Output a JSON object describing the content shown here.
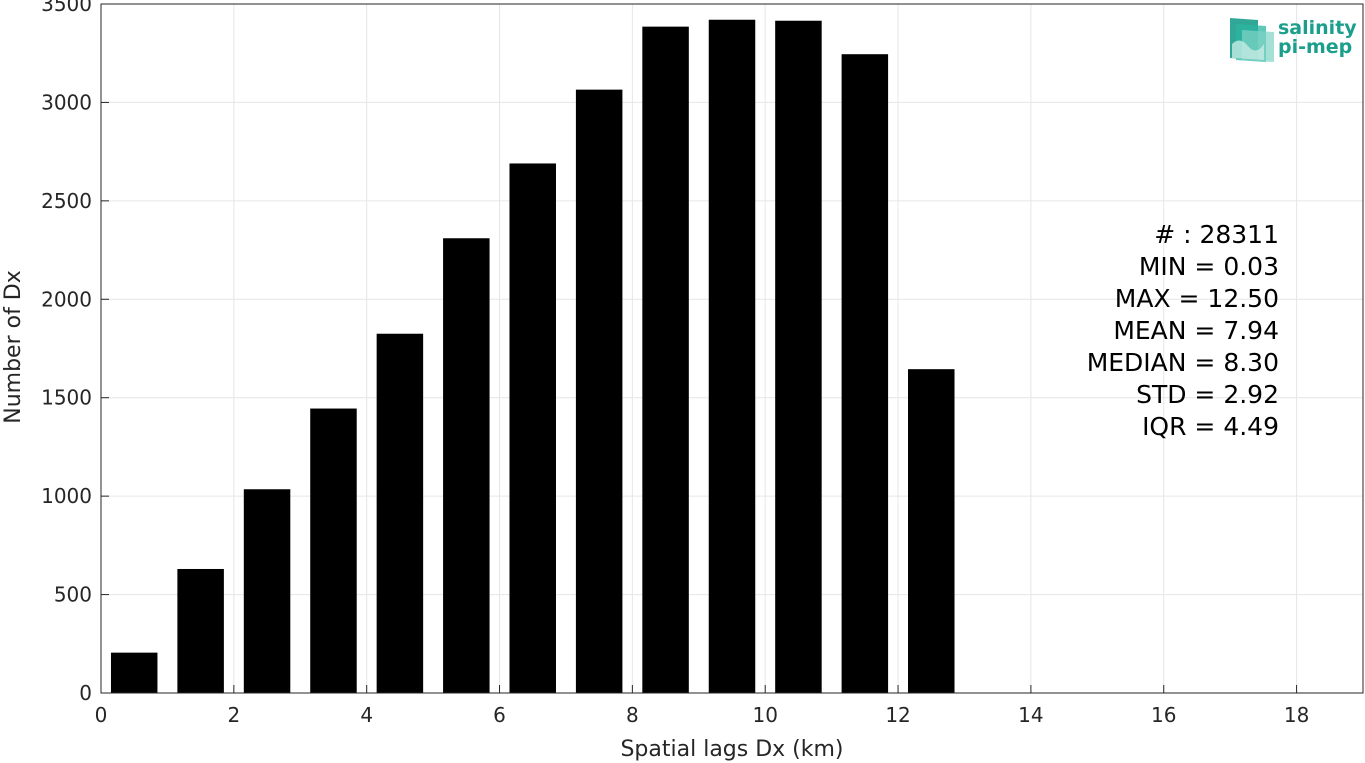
{
  "chart_data": {
    "type": "bar",
    "title": "",
    "xlabel": "Spatial lags Dx (km)",
    "ylabel": "Number of Dx",
    "xlim": [
      0,
      19
    ],
    "ylim": [
      0,
      3500
    ],
    "x_ticks": [
      0,
      2,
      4,
      6,
      8,
      10,
      12,
      14,
      16,
      18
    ],
    "y_ticks": [
      0,
      500,
      1000,
      1500,
      2000,
      2500,
      3000,
      3500
    ],
    "grid": true,
    "bar_width": 0.7,
    "x": [
      0.5,
      1.5,
      2.5,
      3.5,
      4.5,
      5.5,
      6.5,
      7.5,
      8.5,
      9.5,
      10.5,
      11.5,
      12.5
    ],
    "values": [
      205,
      630,
      1035,
      1445,
      1825,
      2310,
      2690,
      3065,
      3385,
      3420,
      3415,
      3245,
      1645
    ],
    "bar_color": "#000000",
    "stats": [
      "# : 28311",
      "MIN = 0.03",
      "MAX =  12.50",
      "MEAN = 7.94",
      "MEDIAN = 8.30",
      "STD = 2.92",
      "IQR = 4.49"
    ]
  },
  "logo": {
    "line1": "salinity",
    "line2": "pi-mep",
    "color": "#1b9f8c"
  }
}
